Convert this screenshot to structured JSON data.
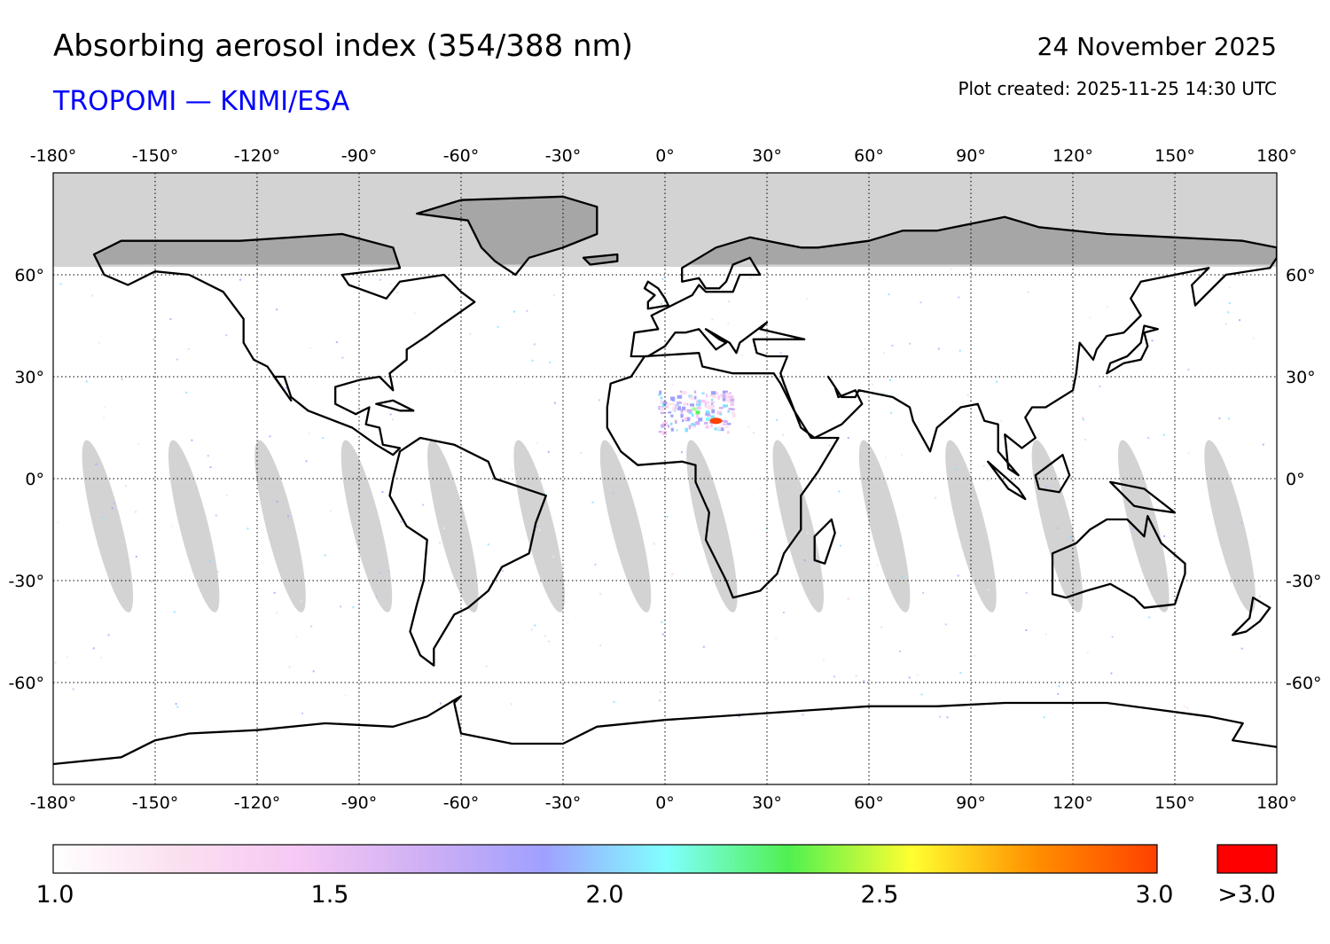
{
  "header": {
    "title": "Absorbing aerosol index (354/388 nm)",
    "subtitle": "TROPOMI — KNMI/ESA",
    "date": "24 November 2025",
    "plot_created": "Plot created: 2025-11-25 14:30 UTC"
  },
  "map": {
    "projection": "equirectangular",
    "lon_range": [
      -180,
      180
    ],
    "lat_range": [
      -90,
      90
    ],
    "lon_ticks": [
      "-180°",
      "-150°",
      "-120°",
      "-90°",
      "-60°",
      "-30°",
      "0°",
      "30°",
      "60°",
      "90°",
      "120°",
      "150°",
      "180°"
    ],
    "lat_ticks_left": [
      "60°",
      "30°",
      "0°",
      "-30°",
      "-60°"
    ],
    "lat_ticks_right": [
      "60°",
      "30°",
      "0°",
      "-30°",
      "-60°"
    ],
    "no_data_color": "#d3d3d3",
    "polar_land_color": "#a6a6a6",
    "hotspot": {
      "lon": 15,
      "lat": 17,
      "value": ">3.0"
    }
  },
  "colorbar": {
    "ticks": [
      "1.0",
      "1.5",
      "2.0",
      "2.5",
      "3.0"
    ],
    "overflow_label": ">3.0",
    "overflow_color": "#ff0000",
    "stops": [
      "#ffffff",
      "#fbe0f0",
      "#f6c8f4",
      "#d0b0f4",
      "#a0a0ff",
      "#80ffff",
      "#50f050",
      "#ffff30",
      "#ff9000",
      "#ff4000"
    ]
  }
}
